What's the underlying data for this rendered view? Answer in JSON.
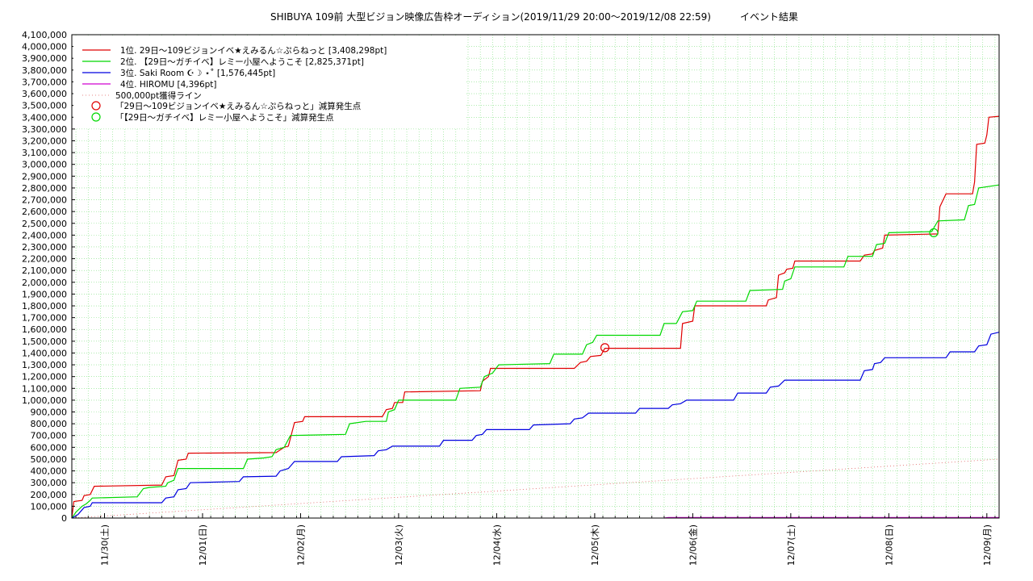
{
  "chart_data": {
    "type": "line",
    "title": "SHIBUYA 109前 大型ビジョン映像広告枠オーディション(2019/11/29 20:00〜2019/12/08 22:59)　　　イベント結果",
    "ylim": [
      0,
      4100000
    ],
    "xlim": [
      "11/29 20:00",
      "12/09 00:00"
    ],
    "grid": true,
    "legend_position": "top-left",
    "y_ticks": [
      "0",
      "100,000",
      "200,000",
      "300,000",
      "400,000",
      "500,000",
      "600,000",
      "700,000",
      "800,000",
      "900,000",
      "1,000,000",
      "1,100,000",
      "1,200,000",
      "1,300,000",
      "1,400,000",
      "1,500,000",
      "1,600,000",
      "1,700,000",
      "1,800,000",
      "1,900,000",
      "2,000,000",
      "2,100,000",
      "2,200,000",
      "2,300,000",
      "2,400,000",
      "2,500,000",
      "2,600,000",
      "2,700,000",
      "2,800,000",
      "2,900,000",
      "3,000,000",
      "3,100,000",
      "3,200,000",
      "3,300,000",
      "3,400,000",
      "3,500,000",
      "3,600,000",
      "3,700,000",
      "3,800,000",
      "3,900,000",
      "4,000,000",
      "4,100,000"
    ],
    "x_ticks": [
      {
        "t": 28,
        "label": "11/30(土)"
      },
      {
        "t": 52,
        "label": "12/01(日)"
      },
      {
        "t": 76,
        "label": "12/02(月)"
      },
      {
        "t": 100,
        "label": "12/03(火)"
      },
      {
        "t": 124,
        "label": "12/04(水)"
      },
      {
        "t": 148,
        "label": "12/05(木)"
      },
      {
        "t": 172,
        "label": "12/06(金)"
      },
      {
        "t": 196,
        "label": "12/07(土)"
      },
      {
        "t": 220,
        "label": "12/08(日)"
      },
      {
        "t": 244,
        "label": "12/09(月)"
      }
    ],
    "series": [
      {
        "name": "1位. 29日〜109ビジョンイベ★えみるん☆ぷらねっと [3,408,298pt]",
        "color": "#e00000",
        "points": [
          [
            20,
            0
          ],
          [
            20.5,
            140000
          ],
          [
            22.5,
            150000
          ],
          [
            23,
            190000
          ],
          [
            24.5,
            200000
          ],
          [
            25.5,
            270000
          ],
          [
            42,
            280000
          ],
          [
            43,
            350000
          ],
          [
            45,
            360000
          ],
          [
            46,
            490000
          ],
          [
            48,
            500000
          ],
          [
            48.5,
            550000
          ],
          [
            70,
            555000
          ],
          [
            72,
            600000
          ],
          [
            73,
            610000
          ],
          [
            74.5,
            810000
          ],
          [
            76.5,
            820000
          ],
          [
            77,
            860000
          ],
          [
            96,
            860000
          ],
          [
            97,
            920000
          ],
          [
            98.5,
            930000
          ],
          [
            99,
            980000
          ],
          [
            101,
            980000
          ],
          [
            101.5,
            1070000
          ],
          [
            120,
            1080000
          ],
          [
            120.5,
            1160000
          ],
          [
            122,
            1200000
          ],
          [
            122.5,
            1270000
          ],
          [
            143,
            1270000
          ],
          [
            144.5,
            1320000
          ],
          [
            146,
            1330000
          ],
          [
            147,
            1370000
          ],
          [
            149.5,
            1380000
          ],
          [
            150.5,
            1440000
          ],
          [
            169,
            1440000
          ],
          [
            169.5,
            1650000
          ],
          [
            172,
            1670000
          ],
          [
            172.5,
            1800000
          ],
          [
            190,
            1800000
          ],
          [
            190.5,
            1850000
          ],
          [
            192.5,
            1870000
          ],
          [
            193,
            2060000
          ],
          [
            194.5,
            2080000
          ],
          [
            195,
            2110000
          ],
          [
            196.5,
            2120000
          ],
          [
            197,
            2180000
          ],
          [
            213,
            2180000
          ],
          [
            214,
            2230000
          ],
          [
            216,
            2240000
          ],
          [
            216.5,
            2270000
          ],
          [
            218.5,
            2290000
          ],
          [
            219,
            2400000
          ],
          [
            232,
            2410000
          ],
          [
            232.5,
            2640000
          ],
          [
            234,
            2750000
          ],
          [
            240.5,
            2750000
          ],
          [
            241,
            2850000
          ],
          [
            241.5,
            3170000
          ],
          [
            243.5,
            3180000
          ],
          [
            244,
            3250000
          ],
          [
            244.5,
            3400000
          ],
          [
            247,
            3408298
          ]
        ]
      },
      {
        "name": "2位. 【29日〜ガチイベ】レミー小屋へようこそ [2,825,371pt]",
        "color": "#00d800",
        "points": [
          [
            20,
            0
          ],
          [
            21,
            50000
          ],
          [
            22.5,
            100000
          ],
          [
            23.5,
            120000
          ],
          [
            24.5,
            150000
          ],
          [
            25,
            170000
          ],
          [
            36,
            180000
          ],
          [
            37.5,
            250000
          ],
          [
            39,
            260000
          ],
          [
            43,
            270000
          ],
          [
            43.5,
            300000
          ],
          [
            45,
            320000
          ],
          [
            46,
            420000
          ],
          [
            62,
            420000
          ],
          [
            63,
            500000
          ],
          [
            67,
            510000
          ],
          [
            69,
            520000
          ],
          [
            70,
            580000
          ],
          [
            72,
            600000
          ],
          [
            73.5,
            700000
          ],
          [
            87,
            710000
          ],
          [
            88,
            800000
          ],
          [
            92,
            820000
          ],
          [
            97,
            820000
          ],
          [
            97.5,
            900000
          ],
          [
            99,
            920000
          ],
          [
            100,
            1000000
          ],
          [
            114,
            1000000
          ],
          [
            115,
            1100000
          ],
          [
            120,
            1110000
          ],
          [
            121,
            1200000
          ],
          [
            123,
            1230000
          ],
          [
            124.5,
            1300000
          ],
          [
            137,
            1310000
          ],
          [
            138,
            1390000
          ],
          [
            145,
            1390000
          ],
          [
            146,
            1470000
          ],
          [
            147.5,
            1490000
          ],
          [
            148.5,
            1550000
          ],
          [
            164,
            1550000
          ],
          [
            165,
            1650000
          ],
          [
            168,
            1650000
          ],
          [
            169.5,
            1750000
          ],
          [
            172,
            1760000
          ],
          [
            173,
            1840000
          ],
          [
            185,
            1840000
          ],
          [
            186,
            1930000
          ],
          [
            194,
            1940000
          ],
          [
            194.5,
            2010000
          ],
          [
            196,
            2030000
          ],
          [
            197,
            2130000
          ],
          [
            209,
            2130000
          ],
          [
            210,
            2220000
          ],
          [
            216,
            2220000
          ],
          [
            217,
            2320000
          ],
          [
            219,
            2330000
          ],
          [
            220,
            2420000
          ],
          [
            230.5,
            2430000
          ],
          [
            232,
            2520000
          ],
          [
            238.5,
            2530000
          ],
          [
            239.5,
            2650000
          ],
          [
            241,
            2660000
          ],
          [
            242,
            2800000
          ],
          [
            247,
            2825371
          ]
        ]
      },
      {
        "name": "3位. Saki Room ☪︎☽ ⋆˚ [1,576,445pt]",
        "color": "#0000e0",
        "points": [
          [
            20,
            0
          ],
          [
            21.5,
            30000
          ],
          [
            22.5,
            70000
          ],
          [
            23,
            90000
          ],
          [
            24.5,
            100000
          ],
          [
            25,
            130000
          ],
          [
            42,
            130000
          ],
          [
            43,
            170000
          ],
          [
            45,
            180000
          ],
          [
            46,
            240000
          ],
          [
            48,
            250000
          ],
          [
            49,
            300000
          ],
          [
            61,
            310000
          ],
          [
            62,
            350000
          ],
          [
            70,
            355000
          ],
          [
            71,
            400000
          ],
          [
            73,
            420000
          ],
          [
            74.5,
            480000
          ],
          [
            85,
            480000
          ],
          [
            86,
            520000
          ],
          [
            94,
            530000
          ],
          [
            95,
            570000
          ],
          [
            97,
            580000
          ],
          [
            98.5,
            610000
          ],
          [
            110,
            610000
          ],
          [
            111,
            660000
          ],
          [
            118,
            660000
          ],
          [
            119,
            700000
          ],
          [
            120.5,
            710000
          ],
          [
            121.5,
            750000
          ],
          [
            132,
            750000
          ],
          [
            133,
            790000
          ],
          [
            142,
            800000
          ],
          [
            143,
            840000
          ],
          [
            145,
            850000
          ],
          [
            146.5,
            890000
          ],
          [
            158,
            890000
          ],
          [
            159,
            930000
          ],
          [
            166,
            930000
          ],
          [
            167,
            960000
          ],
          [
            169,
            970000
          ],
          [
            170.5,
            1000000
          ],
          [
            182,
            1000000
          ],
          [
            183,
            1060000
          ],
          [
            190,
            1060000
          ],
          [
            191,
            1110000
          ],
          [
            193,
            1120000
          ],
          [
            194.5,
            1170000
          ],
          [
            213,
            1170000
          ],
          [
            214,
            1250000
          ],
          [
            216,
            1260000
          ],
          [
            216.5,
            1310000
          ],
          [
            218,
            1320000
          ],
          [
            219,
            1360000
          ],
          [
            234,
            1360000
          ],
          [
            235,
            1410000
          ],
          [
            241,
            1410000
          ],
          [
            242,
            1460000
          ],
          [
            244,
            1470000
          ],
          [
            245,
            1560000
          ],
          [
            247,
            1576445
          ]
        ]
      },
      {
        "name": "4位. HIROMU [4,396pt]",
        "color": "#d000d0",
        "points": [
          [
            165,
            0
          ],
          [
            166,
            4396
          ],
          [
            247,
            4396
          ]
        ]
      },
      {
        "name": "500,000pt獲得ライン",
        "color": "#e06060",
        "dotted": true,
        "points": [
          [
            20,
            0
          ],
          [
            247,
            500000
          ]
        ]
      }
    ],
    "markers": [
      {
        "name": "「29日〜109ビジョンイベ★えみるん☆ぷらねっと」減算発生点",
        "color": "#e00000",
        "points": [
          [
            150.5,
            1445000
          ]
        ]
      },
      {
        "name": "「【29日〜ガチイベ】レミー小屋へようこそ」減算発生点",
        "color": "#00d800",
        "points": [
          [
            231,
            2420000
          ]
        ]
      }
    ]
  }
}
